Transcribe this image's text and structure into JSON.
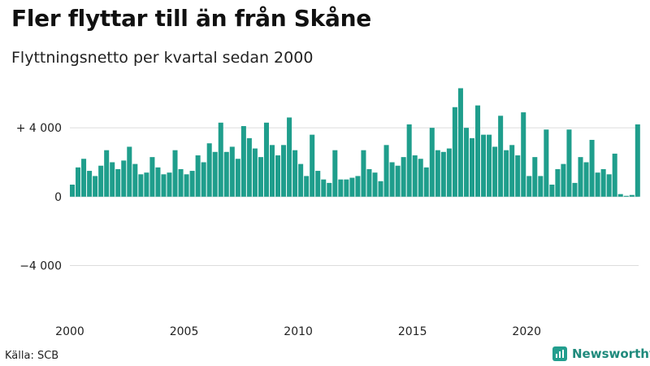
{
  "header": {
    "title": "Fler flyttar till än från Skåne",
    "subtitle": "Flyttningsnetto per kvartal sedan 2000"
  },
  "footer": {
    "source": "Källa: SCB",
    "brand": "Newsworthy"
  },
  "colors": {
    "bar": "#1f9e8c",
    "grid": "#dcdcdc",
    "brand": "#239e8e"
  },
  "chart_data": {
    "type": "bar",
    "title": "Fler flyttar till än från Skåne",
    "subtitle": "Flyttningsnetto per kvartal sedan 2000",
    "xlabel": "",
    "ylabel": "",
    "ylim": [
      -7000,
      6700
    ],
    "x_start": 2000.0,
    "x_step": 0.25,
    "x_range": [
      2000,
      2024.9
    ],
    "x_ticks": [
      2000,
      2005,
      2010,
      2015,
      2020
    ],
    "y_ticks": [
      {
        "value": 4000,
        "label": "+ 4 000"
      },
      {
        "value": 0,
        "label": "0"
      },
      {
        "value": -4000,
        "label": "−4 000"
      }
    ],
    "grid": true,
    "series": [
      {
        "name": "Flyttningsnetto",
        "values": [
          700,
          1700,
          2200,
          1500,
          1200,
          1800,
          2700,
          2000,
          1600,
          2100,
          2900,
          1900,
          1300,
          1400,
          2300,
          1700,
          1300,
          1400,
          2700,
          1600,
          1300,
          1500,
          2400,
          2000,
          3100,
          2600,
          4300,
          2600,
          2900,
          2200,
          4100,
          3400,
          2800,
          2300,
          4300,
          3000,
          2400,
          3000,
          4600,
          2700,
          1900,
          1200,
          3600,
          1500,
          1000,
          800,
          2700,
          1000,
          1000,
          1100,
          1200,
          2700,
          1600,
          1400,
          900,
          3000,
          2000,
          1800,
          2300,
          4200,
          2400,
          2200,
          1700,
          4000,
          2700,
          2600,
          2800,
          5200,
          6300,
          4000,
          3400,
          5300,
          3600,
          3600,
          2900,
          4700,
          2700,
          3000,
          2400,
          4900,
          1200,
          2300,
          1200,
          3900,
          700,
          1600,
          1900,
          3900,
          800,
          2300,
          2000,
          3300,
          1400,
          1600,
          1300,
          2500,
          150,
          50,
          100,
          4200
        ]
      }
    ]
  }
}
